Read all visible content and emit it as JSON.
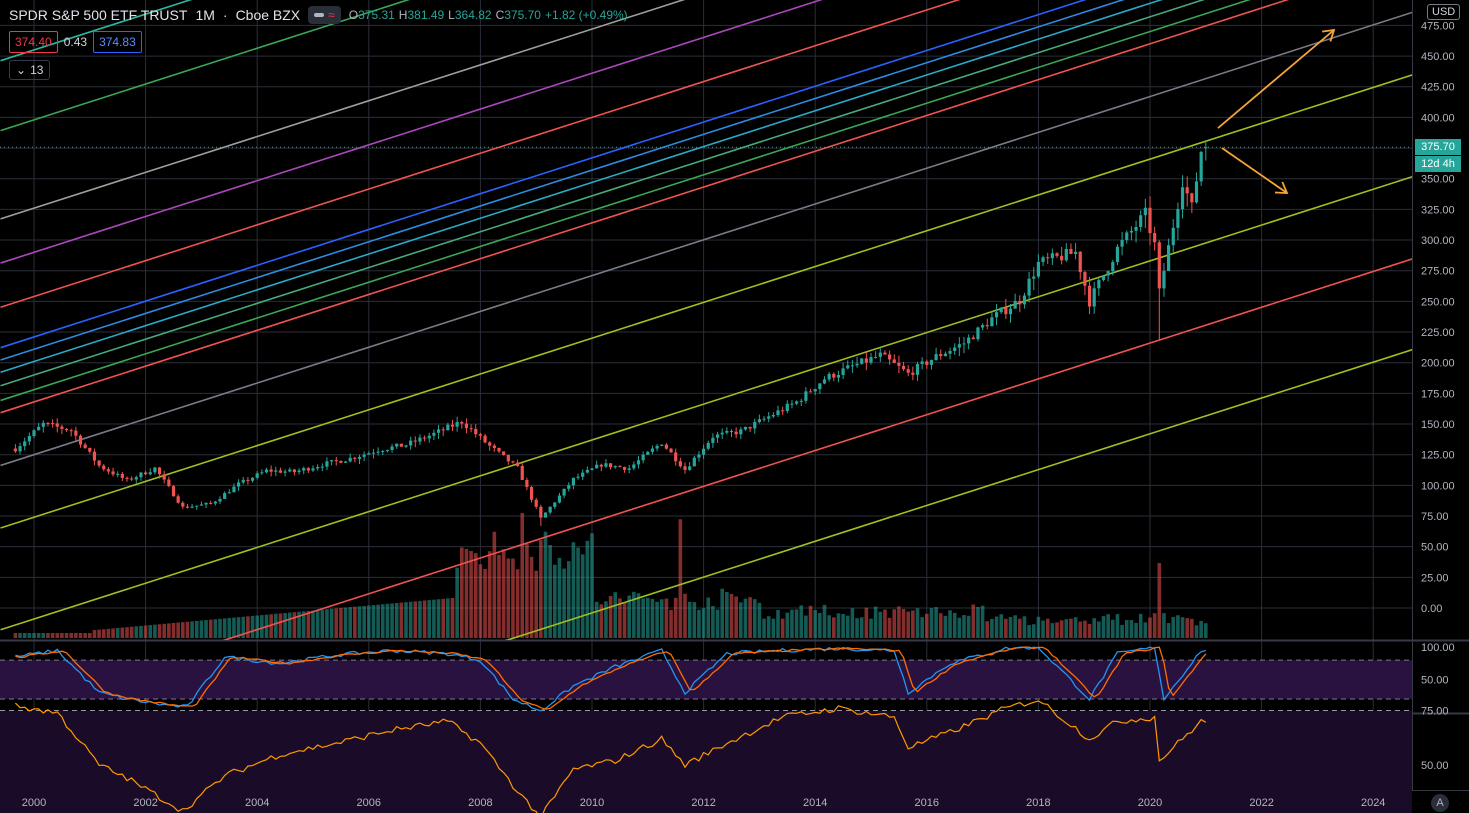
{
  "header": {
    "symbol": "SPDR S&P 500 ETF TRUST",
    "interval": "1M",
    "exchange": "Cboe BZX",
    "open_label": "O",
    "open": "375.31",
    "high_label": "H",
    "high": "381.49",
    "low_label": "L",
    "low": "364.82",
    "close_label": "C",
    "close": "375.70",
    "change": "+1.82 (+0.49%)",
    "bid": "374.40",
    "spread": "0.43",
    "ask": "374.83",
    "indicator_count": "13",
    "currency": "USD"
  },
  "price_labels": {
    "last_price": "375.70",
    "countdown": "12d 4h"
  },
  "colors": {
    "background": "#000000",
    "up": "#26a69a",
    "down": "#ef5350",
    "grid": "#2a2e39",
    "stoch_k": "#2196f3",
    "stoch_d": "#ff6d00",
    "rsi": "#ff9800",
    "indicator_band": "#2a1240",
    "arrow": "#f7a43a"
  },
  "chart_data": [
    {
      "type": "candlestick",
      "series_name": "SPY",
      "interval": "1M",
      "x_axis": {
        "type": "date",
        "range": [
          "1999-08-01",
          "2025-04-01"
        ],
        "ticks": [
          "2000",
          "2002",
          "2004",
          "2006",
          "2008",
          "2010",
          "2012",
          "2014",
          "2016",
          "2018",
          "2020",
          "2022",
          "2024"
        ]
      },
      "y_axis": {
        "scale": "linear",
        "range": [
          -25,
          490
        ],
        "ticks": [
          "0.00",
          "25.00",
          "50.00",
          "75.00",
          "100.00",
          "125.00",
          "150.00",
          "175.00",
          "200.00",
          "225.00",
          "250.00",
          "275.00",
          "300.00",
          "325.00",
          "350.00",
          "375.00",
          "400.00",
          "425.00",
          "450.00",
          "475.00"
        ]
      },
      "grid": true,
      "monthly_close_anchors": [
        [
          "1999-09-01",
          130
        ],
        [
          "2000-03-01",
          150
        ],
        [
          "2000-09-01",
          145
        ],
        [
          "2001-03-01",
          116
        ],
        [
          "2001-09-01",
          104
        ],
        [
          "2002-03-01",
          114
        ],
        [
          "2002-09-01",
          82
        ],
        [
          "2003-03-01",
          85
        ],
        [
          "2003-09-01",
          101
        ],
        [
          "2004-03-01",
          112
        ],
        [
          "2004-09-01",
          111
        ],
        [
          "2005-03-01",
          117
        ],
        [
          "2005-09-01",
          122
        ],
        [
          "2006-03-01",
          129
        ],
        [
          "2006-09-01",
          133
        ],
        [
          "2007-03-01",
          142
        ],
        [
          "2007-09-01",
          152
        ],
        [
          "2008-03-01",
          132
        ],
        [
          "2008-09-01",
          114
        ],
        [
          "2009-02-01",
          73
        ],
        [
          "2009-09-01",
          105
        ],
        [
          "2010-03-01",
          117
        ],
        [
          "2010-09-01",
          114
        ],
        [
          "2011-04-01",
          135
        ],
        [
          "2011-09-01",
          113
        ],
        [
          "2012-03-01",
          140
        ],
        [
          "2012-09-01",
          144
        ],
        [
          "2013-03-01",
          156
        ],
        [
          "2013-09-01",
          168
        ],
        [
          "2014-03-01",
          187
        ],
        [
          "2014-09-01",
          197
        ],
        [
          "2015-03-01",
          206
        ],
        [
          "2015-09-01",
          191
        ],
        [
          "2016-03-01",
          205
        ],
        [
          "2016-09-01",
          216
        ],
        [
          "2017-03-01",
          236
        ],
        [
          "2017-09-01",
          251
        ],
        [
          "2018-01-01",
          281
        ],
        [
          "2018-09-01",
          290
        ],
        [
          "2018-12-01",
          250
        ],
        [
          "2019-06-01",
          293
        ],
        [
          "2019-12-01",
          321
        ],
        [
          "2020-02-01",
          296
        ],
        [
          "2020-03-01",
          257
        ],
        [
          "2020-08-01",
          349
        ],
        [
          "2020-10-01",
          326
        ],
        [
          "2020-12-01",
          373
        ],
        [
          "2021-01-01",
          375.7
        ]
      ],
      "last_candle": {
        "open": 375.31,
        "high": 381.49,
        "low": 364.82,
        "close": 375.7
      },
      "volume_spikes": [
        [
          "2008-10-01",
          1.0
        ],
        [
          "2011-08-01",
          0.95
        ],
        [
          "2009-03-01",
          0.7
        ],
        [
          "2020-03-01",
          0.6
        ]
      ]
    },
    {
      "type": "line",
      "name": "channel_lines",
      "slope_per_year": 14.6,
      "lines": [
        {
          "value_at_2000": 125,
          "color": "#787b86"
        },
        {
          "value_at_2000": 168,
          "color": "#ef5350"
        },
        {
          "value_at_2000": 74,
          "color": "#9fbf1f"
        },
        {
          "value_at_2000": 178,
          "color": "#3aa655"
        },
        {
          "value_at_2000": 190,
          "color": "#46a87c"
        },
        {
          "value_at_2000": 201,
          "color": "#29a8c7"
        },
        {
          "value_at_2000": 211,
          "color": "#2c8be0"
        },
        {
          "value_at_2000": 221,
          "color": "#2962ff"
        },
        {
          "value_at_2000": 254,
          "color": "#ef5350"
        },
        {
          "value_at_2000": 290,
          "color": "#ab47bc"
        },
        {
          "value_at_2000": 326,
          "color": "#9e9e9e"
        },
        {
          "value_at_2000": 398,
          "color": "#3aa655"
        },
        {
          "value_at_2000": 455,
          "color": "#2bb7a0"
        },
        {
          "value_at_2000": 547,
          "color": "#2c8be0"
        },
        {
          "value_at_2000": -9,
          "color": "#9fbf1f"
        },
        {
          "value_at_2000": -76,
          "color": "#ef5350"
        },
        {
          "value_at_2000": -150,
          "color": "#9fbf1f"
        }
      ]
    },
    {
      "type": "line",
      "name": "stochastic",
      "y_axis": {
        "range": [
          0,
          100
        ],
        "ticks": [
          "50.00",
          "100.00"
        ]
      },
      "levels": [
        80,
        20
      ],
      "series": [
        {
          "color": "#2196f3"
        },
        {
          "color": "#ff6d00"
        }
      ],
      "anchors": [
        [
          "1999-09-01",
          85
        ],
        [
          "2000-06-01",
          95
        ],
        [
          "2001-03-01",
          30
        ],
        [
          "2001-09-01",
          20
        ],
        [
          "2002-06-01",
          10
        ],
        [
          "2002-10-01",
          8
        ],
        [
          "2003-06-01",
          85
        ],
        [
          "2004-06-01",
          75
        ],
        [
          "2005-06-01",
          88
        ],
        [
          "2006-06-01",
          95
        ],
        [
          "2007-06-01",
          90
        ],
        [
          "2008-01-01",
          80
        ],
        [
          "2008-08-01",
          20
        ],
        [
          "2009-02-01",
          2
        ],
        [
          "2009-09-01",
          40
        ],
        [
          "2010-06-01",
          70
        ],
        [
          "2011-04-01",
          95
        ],
        [
          "2011-09-01",
          30
        ],
        [
          "2012-06-01",
          90
        ],
        [
          "2013-06-01",
          95
        ],
        [
          "2014-06-01",
          98
        ],
        [
          "2015-06-01",
          95
        ],
        [
          "2015-09-01",
          30
        ],
        [
          "2016-06-01",
          75
        ],
        [
          "2017-06-01",
          98
        ],
        [
          "2018-01-01",
          100
        ],
        [
          "2018-12-01",
          20
        ],
        [
          "2019-06-01",
          90
        ],
        [
          "2020-02-01",
          100
        ],
        [
          "2020-04-01",
          20
        ],
        [
          "2020-12-01",
          95
        ]
      ]
    },
    {
      "type": "line",
      "name": "rsi",
      "y_axis": {
        "range": [
          20,
          85
        ],
        "ticks": [
          "50.00",
          "75.00"
        ]
      },
      "levels": [
        75,
        25
      ],
      "series": [
        {
          "color": "#ff9800"
        }
      ],
      "anchors": [
        [
          "1999-09-01",
          77
        ],
        [
          "2000-06-01",
          74
        ],
        [
          "2001-03-01",
          50
        ],
        [
          "2001-09-01",
          44
        ],
        [
          "2002-09-01",
          29
        ],
        [
          "2003-06-01",
          45
        ],
        [
          "2004-06-01",
          55
        ],
        [
          "2005-06-01",
          60
        ],
        [
          "2006-06-01",
          66
        ],
        [
          "2007-06-01",
          70
        ],
        [
          "2008-01-01",
          60
        ],
        [
          "2008-09-01",
          38
        ],
        [
          "2009-02-01",
          26
        ],
        [
          "2009-09-01",
          48
        ],
        [
          "2010-06-01",
          52
        ],
        [
          "2011-04-01",
          62
        ],
        [
          "2011-09-01",
          50
        ],
        [
          "2012-06-01",
          60
        ],
        [
          "2013-06-01",
          72
        ],
        [
          "2014-06-01",
          76
        ],
        [
          "2015-06-01",
          72
        ],
        [
          "2015-09-01",
          58
        ],
        [
          "2016-06-01",
          65
        ],
        [
          "2017-06-01",
          76
        ],
        [
          "2018-01-01",
          80
        ],
        [
          "2018-12-01",
          62
        ],
        [
          "2019-06-01",
          70
        ],
        [
          "2020-02-01",
          72
        ],
        [
          "2020-03-01",
          52
        ],
        [
          "2020-12-01",
          70
        ]
      ]
    }
  ]
}
